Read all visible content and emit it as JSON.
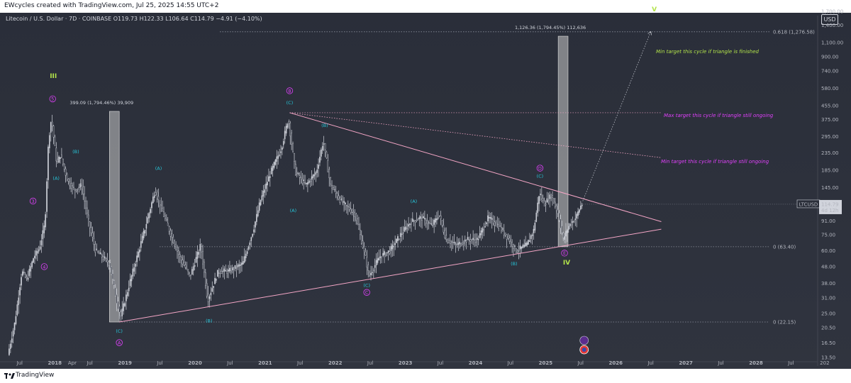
{
  "header": {
    "attribution": "EWcycles created with TradingView.com, Jul 25, 2025 14:55 UTC+2",
    "symbol": "Litecoin / U.S. Dollar · 7D · COINBASE  O119.73  H122.33  L106.64  C114.79  −4.91 (−4.10%)",
    "currency": "USD"
  },
  "footer": {
    "brand": "TradingView"
  },
  "price_box": {
    "ticker": "LTCUSD",
    "price": "114.79",
    "countdown": "4d 12h"
  },
  "colors": {
    "background": "#2a2e39",
    "candles": "#d1d4dc",
    "triangle": "#f4a6c6",
    "wave_magenta": "#e040fb",
    "wave_cyan": "#26c6da",
    "wave_green": "#b2e34a",
    "fib_line": "#8a8f9c",
    "target_band": "#c8c8c8"
  },
  "chart_data": {
    "type": "candlestick",
    "symbol": "LTCUSD",
    "exchange": "COINBASE",
    "interval": "7D",
    "y_scale": "log",
    "ylim": [
      13.5,
      1600
    ],
    "x_ticks": [
      "Jul",
      "2018",
      "Apr",
      "Jul",
      "2019",
      "Jul",
      "2020",
      "Jul",
      "2021",
      "Jul",
      "2022",
      "Jul",
      "2023",
      "Jul",
      "2024",
      "Jul",
      "2025",
      "Jul",
      "2026",
      "Jul",
      "2027",
      "Jul",
      "2028",
      "Jul",
      "202"
    ],
    "y_ticks": [
      "1,700.00",
      "1,400.00",
      "1,100.00",
      "900.00",
      "740.00",
      "580.00",
      "455.00",
      "375.00",
      "295.00",
      "235.00",
      "185.00",
      "145.00",
      "114.79",
      "91.00",
      "75.00",
      "60.00",
      "48.00",
      "38.00",
      "31.00",
      "25.00",
      "20.50",
      "16.50",
      "13.50"
    ],
    "price_path": [
      {
        "t": 2017.35,
        "p": 14
      },
      {
        "t": 2017.45,
        "p": 22
      },
      {
        "t": 2017.55,
        "p": 45
      },
      {
        "t": 2017.62,
        "p": 40
      },
      {
        "t": 2017.72,
        "p": 55
      },
      {
        "t": 2017.8,
        "p": 62
      },
      {
        "t": 2017.88,
        "p": 88
      },
      {
        "t": 2017.93,
        "p": 280
      },
      {
        "t": 2017.97,
        "p": 380
      },
      {
        "t": 2018.05,
        "p": 200
      },
      {
        "t": 2018.1,
        "p": 230
      },
      {
        "t": 2018.2,
        "p": 160
      },
      {
        "t": 2018.3,
        "p": 140
      },
      {
        "t": 2018.4,
        "p": 150
      },
      {
        "t": 2018.5,
        "p": 90
      },
      {
        "t": 2018.6,
        "p": 60
      },
      {
        "t": 2018.7,
        "p": 55
      },
      {
        "t": 2018.8,
        "p": 50
      },
      {
        "t": 2018.9,
        "p": 30
      },
      {
        "t": 2018.96,
        "p": 24
      },
      {
        "t": 2019.1,
        "p": 40
      },
      {
        "t": 2019.3,
        "p": 80
      },
      {
        "t": 2019.45,
        "p": 140
      },
      {
        "t": 2019.5,
        "p": 120
      },
      {
        "t": 2019.65,
        "p": 80
      },
      {
        "t": 2019.8,
        "p": 55
      },
      {
        "t": 2019.95,
        "p": 42
      },
      {
        "t": 2020.1,
        "p": 65
      },
      {
        "t": 2020.2,
        "p": 30
      },
      {
        "t": 2020.35,
        "p": 45
      },
      {
        "t": 2020.5,
        "p": 45
      },
      {
        "t": 2020.7,
        "p": 50
      },
      {
        "t": 2020.85,
        "p": 80
      },
      {
        "t": 2020.95,
        "p": 120
      },
      {
        "t": 2021.1,
        "p": 180
      },
      {
        "t": 2021.25,
        "p": 250
      },
      {
        "t": 2021.35,
        "p": 380
      },
      {
        "t": 2021.45,
        "p": 180
      },
      {
        "t": 2021.6,
        "p": 150
      },
      {
        "t": 2021.75,
        "p": 180
      },
      {
        "t": 2021.85,
        "p": 280
      },
      {
        "t": 2021.95,
        "p": 150
      },
      {
        "t": 2022.1,
        "p": 120
      },
      {
        "t": 2022.3,
        "p": 100
      },
      {
        "t": 2022.45,
        "p": 55
      },
      {
        "t": 2022.5,
        "p": 42
      },
      {
        "t": 2022.65,
        "p": 55
      },
      {
        "t": 2022.8,
        "p": 60
      },
      {
        "t": 2022.95,
        "p": 75
      },
      {
        "t": 2023.1,
        "p": 90
      },
      {
        "t": 2023.25,
        "p": 95
      },
      {
        "t": 2023.4,
        "p": 85
      },
      {
        "t": 2023.5,
        "p": 100
      },
      {
        "t": 2023.6,
        "p": 70
      },
      {
        "t": 2023.75,
        "p": 65
      },
      {
        "t": 2023.9,
        "p": 70
      },
      {
        "t": 2024.05,
        "p": 70
      },
      {
        "t": 2024.2,
        "p": 95
      },
      {
        "t": 2024.35,
        "p": 85
      },
      {
        "t": 2024.5,
        "p": 70
      },
      {
        "t": 2024.6,
        "p": 60
      },
      {
        "t": 2024.75,
        "p": 65
      },
      {
        "t": 2024.85,
        "p": 80
      },
      {
        "t": 2024.93,
        "p": 135
      },
      {
        "t": 2025.0,
        "p": 115
      },
      {
        "t": 2025.1,
        "p": 130
      },
      {
        "t": 2025.2,
        "p": 100
      },
      {
        "t": 2025.27,
        "p": 70
      },
      {
        "t": 2025.35,
        "p": 85
      },
      {
        "t": 2025.45,
        "p": 95
      },
      {
        "t": 2025.53,
        "p": 114.79
      }
    ],
    "fib_levels": [
      {
        "label": "0.618 (1,276.58)",
        "value": 1276.58
      },
      {
        "label": "0 (63.40)",
        "value": 63.4
      },
      {
        "label": "0 (22.15)",
        "value": 22.15
      }
    ],
    "target_bars": [
      {
        "label": "399.09 (1,794.46%) 39,909",
        "t_start": 2018.78,
        "t_end": 2018.92,
        "low": 22.15,
        "high": 420
      },
      {
        "label": "1,126.36 (1,794.45%) 112,636",
        "t_start": 2025.18,
        "t_end": 2025.32,
        "low": 63.4,
        "high": 1200
      }
    ],
    "triangle": {
      "upper": {
        "t0": 2021.35,
        "p0": 412,
        "t1": 2026.65,
        "p1": 90
      },
      "lower": {
        "t0": 2018.92,
        "p0": 22.15,
        "t1": 2026.65,
        "p1": 81
      },
      "upper_dotted": {
        "t0": 2021.35,
        "p0": 412,
        "t1": 2026.65,
        "p1": 220
      }
    },
    "projection": {
      "t0": 2025.53,
      "p0": 120,
      "t1": 2026.5,
      "p1": 1280
    },
    "annotations": [
      {
        "text": "Min target this cycle if triangle is finished",
        "color": "#b2e34a"
      },
      {
        "text": "Max target this cycle if triangle still ongoing",
        "color": "#e040fb"
      },
      {
        "text": "Min target this cycle if triangle still ongoing",
        "color": "#e040fb"
      }
    ],
    "wave_labels": [
      {
        "text": "III",
        "t": 2017.98,
        "p": 690,
        "style": "green"
      },
      {
        "text": "5",
        "t": 2017.97,
        "p": 500,
        "style": "magenta-circle"
      },
      {
        "text": "3",
        "t": 2017.69,
        "p": 120,
        "style": "magenta-circle"
      },
      {
        "text": "4",
        "t": 2017.85,
        "p": 48,
        "style": "magenta-circle"
      },
      {
        "text": "(A)",
        "t": 2018.02,
        "p": 165,
        "style": "cyan"
      },
      {
        "text": "(B)",
        "t": 2018.3,
        "p": 240,
        "style": "cyan"
      },
      {
        "text": "(C)",
        "t": 2018.92,
        "p": 19.5,
        "style": "cyan"
      },
      {
        "text": "A",
        "t": 2018.92,
        "p": 16.6,
        "style": "magenta-circle"
      },
      {
        "text": "(A)",
        "t": 2019.48,
        "p": 190,
        "style": "cyan"
      },
      {
        "text": "(B)",
        "t": 2020.2,
        "p": 22.5,
        "style": "cyan"
      },
      {
        "text": "B",
        "t": 2021.35,
        "p": 560,
        "style": "magenta-circle"
      },
      {
        "text": "(C)",
        "t": 2021.35,
        "p": 475,
        "style": "cyan"
      },
      {
        "text": "(A)",
        "t": 2021.4,
        "p": 105,
        "style": "cyan"
      },
      {
        "text": "(B)",
        "t": 2021.85,
        "p": 345,
        "style": "cyan"
      },
      {
        "text": "(C)",
        "t": 2022.45,
        "p": 37,
        "style": "cyan"
      },
      {
        "text": "C",
        "t": 2022.45,
        "p": 33.5,
        "style": "magenta-circle"
      },
      {
        "text": "(A)",
        "t": 2023.12,
        "p": 120,
        "style": "cyan"
      },
      {
        "text": "(B)",
        "t": 2024.55,
        "p": 50,
        "style": "cyan"
      },
      {
        "text": "D",
        "t": 2024.92,
        "p": 190,
        "style": "magenta-circle"
      },
      {
        "text": "(C)",
        "t": 2024.92,
        "p": 170,
        "style": "cyan"
      },
      {
        "text": "E",
        "t": 2025.27,
        "p": 58,
        "style": "magenta-circle"
      },
      {
        "text": "IV",
        "t": 2025.3,
        "p": 51,
        "style": "green"
      },
      {
        "text": "V",
        "t": 2026.55,
        "p": 1750,
        "style": "green"
      }
    ]
  }
}
